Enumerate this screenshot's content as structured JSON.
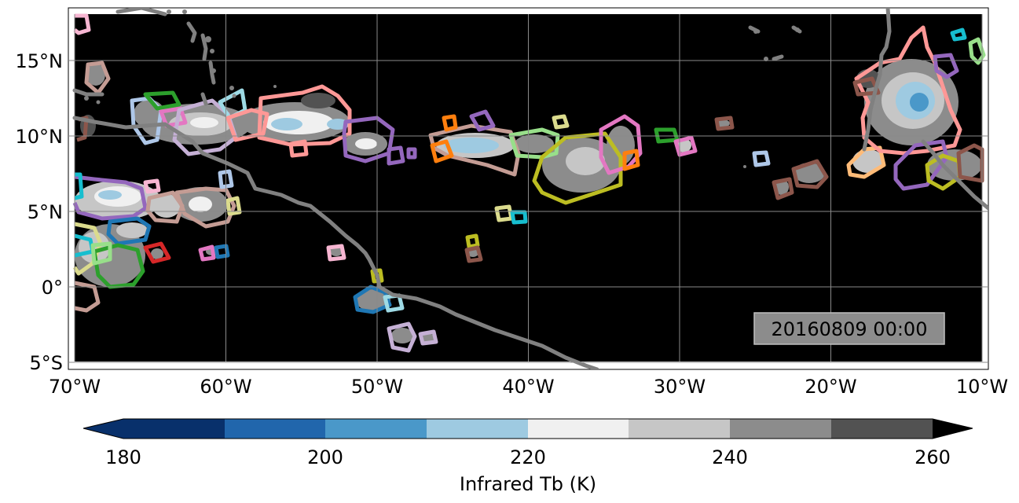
{
  "map": {
    "timestamp": "20160809 00:00",
    "lat_ticks": [
      {
        "value": 15,
        "label": "15°N"
      },
      {
        "value": 10,
        "label": "10°N"
      },
      {
        "value": 5,
        "label": "5°N"
      },
      {
        "value": 0,
        "label": "0°"
      },
      {
        "value": -5,
        "label": "5°S"
      }
    ],
    "lon_ticks": [
      {
        "value": -70,
        "label": "70°W"
      },
      {
        "value": -60,
        "label": "60°W"
      },
      {
        "value": -50,
        "label": "50°W"
      },
      {
        "value": -40,
        "label": "40°W"
      },
      {
        "value": -30,
        "label": "30°W"
      },
      {
        "value": -20,
        "label": "20°W"
      },
      {
        "value": -10,
        "label": "10°W"
      }
    ],
    "extent": {
      "lon": [
        -70,
        -10
      ],
      "lat": [
        -5,
        18
      ]
    },
    "background_color": "#000000",
    "coastline_color": "#808080",
    "gridlines": true
  },
  "colorbar": {
    "label": "Infrared Tb (K)",
    "ticks": [
      "180",
      "200",
      "220",
      "240",
      "260"
    ],
    "levels": [
      180,
      190,
      200,
      210,
      220,
      230,
      240,
      250,
      260
    ],
    "colors": [
      "#08306b",
      "#2166ac",
      "#4a98c9",
      "#9ecae1",
      "#f0f0f0",
      "#c6c6c6",
      "#8c8c8c",
      "#525252"
    ],
    "extend": "both"
  }
}
